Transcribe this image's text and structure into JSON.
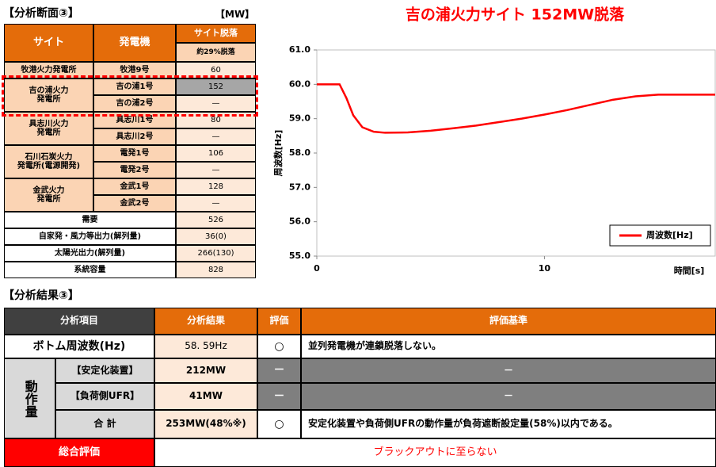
{
  "top_table": {
    "title": "【分析断面③】",
    "unit": "【MW】",
    "headers": [
      "サイト",
      "発電機",
      "サイト脱落"
    ],
    "subheader": "約29%脱落",
    "sites": [
      {
        "lines": [
          "牧港火力発電所"
        ],
        "generators": [
          {
            "name": "牧港9号",
            "value": 60
          }
        ]
      },
      {
        "lines": [
          "吉の浦火力",
          "発電所"
        ],
        "generators": [
          {
            "name": "吉の浦1号",
            "value": 152
          },
          {
            "name": "吉の浦2号",
            "value": "—"
          }
        ]
      },
      {
        "lines": [
          "具志川火力",
          "発電所"
        ],
        "generators": [
          {
            "name": "具志川1号",
            "value": 80
          },
          {
            "name": "具志川2号",
            "value": "—"
          }
        ]
      },
      {
        "lines": [
          "石川石炭火力",
          "発電所(電源開発)"
        ],
        "generators": [
          {
            "name": "電発1号",
            "value": 106
          },
          {
            "name": "電発2号",
            "value": "—"
          }
        ]
      },
      {
        "lines": [
          "金武火力",
          "発電所"
        ],
        "generators": [
          {
            "name": "金武1号",
            "value": 128
          },
          {
            "name": "金武2号",
            "value": "—"
          }
        ]
      }
    ],
    "totals": [
      {
        "label": "需要",
        "value": 526
      },
      {
        "label": "自家発・風力等出力(解列量)",
        "value": "36(0)"
      },
      {
        "label": "太陽光出力(解列量)",
        "value": "266(130)"
      },
      {
        "label": "系統容量",
        "value": 828
      }
    ]
  },
  "chart_data": {
    "type": "line",
    "title": "吉の浦火力サイト 152MW脱落",
    "x_label": "時間[s]",
    "y_label": "周波数[Hz]",
    "x": [
      0,
      1,
      1.3,
      1.6,
      2,
      2.5,
      3,
      4,
      5,
      6,
      7,
      8,
      9,
      10,
      11,
      12,
      13,
      14,
      15,
      16,
      17.5
    ],
    "series": [
      {
        "name": "周波数[Hz]",
        "color": "#ff0000",
        "values": [
          60,
          60,
          59.6,
          59.1,
          58.75,
          58.62,
          58.59,
          58.6,
          58.65,
          58.72,
          58.8,
          58.9,
          59.0,
          59.12,
          59.25,
          59.4,
          59.55,
          59.65,
          59.7,
          59.7,
          59.7
        ]
      }
    ],
    "xlim": [
      0,
      17.5
    ],
    "xticks": [
      0,
      10
    ],
    "ylim": [
      55,
      61
    ],
    "yticks": [
      {
        "value": 55,
        "label": "55.0"
      },
      {
        "value": 56,
        "label": "56.0"
      },
      {
        "value": 57,
        "label": "57.0"
      },
      {
        "value": 58,
        "label": "58.0"
      },
      {
        "value": 59,
        "label": "59.0"
      },
      {
        "value": 60,
        "label": "60.0"
      },
      {
        "value": 61,
        "label": "61.0"
      }
    ],
    "grid": false,
    "legend": "lower right"
  },
  "bottom_table": {
    "title": "【分析結果③】",
    "headers": [
      "分析項目",
      "分析結果",
      "評価",
      "評価基準"
    ],
    "bottom": {
      "item": "ボトム周波数(Hz)",
      "result": "58. 59Hz",
      "evaluation": "○",
      "criterion": "並列発電機が連鎖脱落しない。"
    },
    "group": "動作量",
    "rows": [
      {
        "item": "【安定化装置】",
        "result": "212MW",
        "evaluation": "－",
        "criterion": "－"
      },
      {
        "item": "【負荷側UFR】",
        "result": "41MW",
        "evaluation": "－",
        "criterion": "－"
      },
      {
        "item": "合 計",
        "result": "253MW(48%※)",
        "evaluation": "○",
        "criterion": "安定化装置や負荷側UFRの動作量が負荷遮断設定量(58%)以内である。"
      }
    ],
    "overall": {
      "label": "総合評価",
      "result": "ブラックアウトに至らない"
    }
  }
}
